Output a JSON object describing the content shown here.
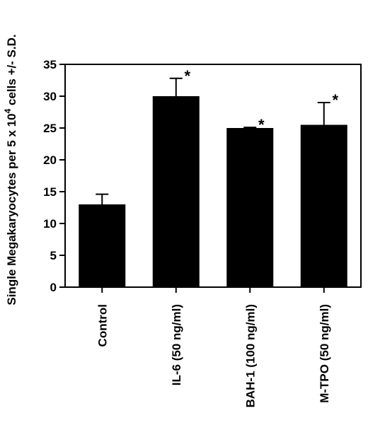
{
  "chart_data": {
    "type": "bar",
    "categories": [
      "Control",
      "IL-6 (50 ng/ml)",
      "BAH-1 (100 ng/ml)",
      "M-TPO (50 ng/ml)"
    ],
    "values": [
      13,
      30,
      25,
      25.5
    ],
    "error_upper": [
      14.6,
      32.8,
      25.1,
      29
    ],
    "annotations": [
      "",
      "*",
      "*",
      "*"
    ],
    "ylabel_main": "Single Megakaryocytes per 5 x 10",
    "ylabel_sup": "4",
    "ylabel_tail": " cells +/- S.D.",
    "ylim": [
      0,
      35
    ],
    "yticks": [
      "0",
      "5",
      "10",
      "15",
      "20",
      "25",
      "30",
      "35"
    ],
    "grid": false,
    "bar_color": "#000000"
  }
}
